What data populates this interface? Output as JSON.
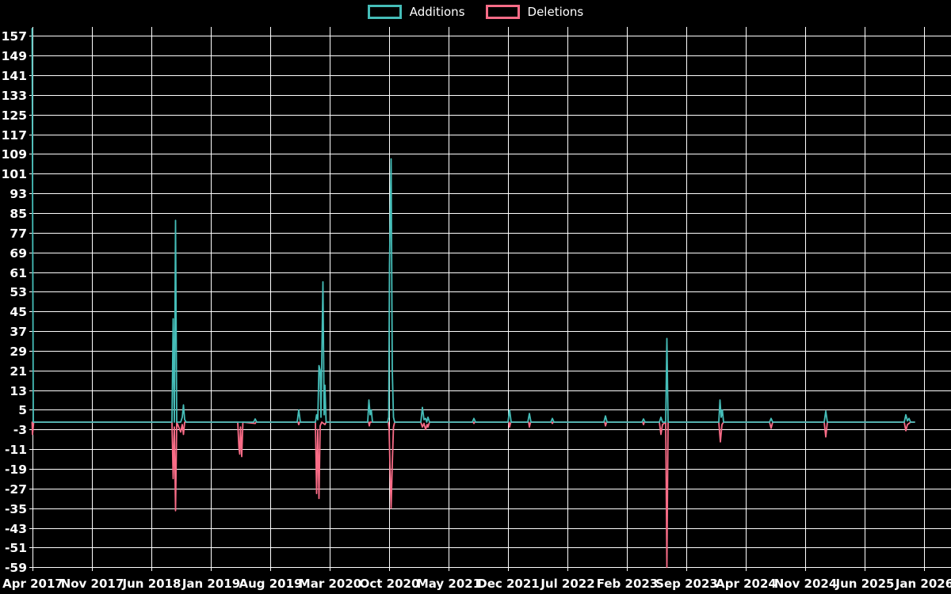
{
  "legend": {
    "items": [
      {
        "label": "Additions",
        "color": "#45bdb8"
      },
      {
        "label": "Deletions",
        "color": "#f96c87"
      }
    ]
  },
  "chart_data": {
    "type": "line",
    "title": "",
    "xlabel": "",
    "ylabel": "",
    "background_color": "#000000",
    "grid": true,
    "grid_color": "#ffffff",
    "text_color": "#ffffff",
    "legend_position": "top-center",
    "ylim": [
      -59,
      160
    ],
    "y_ticks": [
      157,
      149,
      141,
      133,
      125,
      117,
      109,
      101,
      93,
      85,
      77,
      69,
      61,
      53,
      45,
      37,
      29,
      21,
      13,
      5,
      -3,
      -11,
      -19,
      -27,
      -35,
      -43,
      -51,
      -59
    ],
    "x_ticks": [
      "Apr 2017",
      "Nov 2017",
      "Jun 2018",
      "Jan 2019",
      "Aug 2019",
      "Mar 2020",
      "Oct 2020",
      "May 2021",
      "Dec 2021",
      "Jul 2022",
      "Feb 2023",
      "Sep 2023",
      "Apr 2024",
      "Nov 2024",
      "Jun 2025",
      "Jan 2026"
    ],
    "series": [
      {
        "name": "Additions",
        "color": "#45bdb8",
        "points": [
          [
            40.5,
            160
          ],
          [
            42,
            0
          ],
          [
            217,
            0
          ],
          [
            218.5,
            42
          ],
          [
            220,
            0
          ],
          [
            221.5,
            82
          ],
          [
            223,
            0
          ],
          [
            228,
            0
          ],
          [
            230,
            2
          ],
          [
            231.5,
            7
          ],
          [
            233,
            1
          ],
          [
            235,
            0
          ],
          [
            300,
            0
          ],
          [
            306,
            0
          ],
          [
            320,
            0
          ],
          [
            322,
            1.3
          ],
          [
            324,
            0
          ],
          [
            375,
            0
          ],
          [
            377,
            5
          ],
          [
            379,
            0
          ],
          [
            398,
            0
          ],
          [
            399.5,
            3
          ],
          [
            401,
            1
          ],
          [
            402.5,
            23
          ],
          [
            404,
            21
          ],
          [
            405,
            2
          ],
          [
            407.5,
            57
          ],
          [
            409,
            3
          ],
          [
            410,
            15
          ],
          [
            411.5,
            0
          ],
          [
            464,
            0
          ],
          [
            465.5,
            9
          ],
          [
            467,
            3
          ],
          [
            468.5,
            5
          ],
          [
            470,
            0
          ],
          [
            489,
            0
          ],
          [
            490.5,
            2
          ],
          [
            491.5,
            64
          ],
          [
            493.5,
            107
          ],
          [
            495,
            21
          ],
          [
            496.5,
            2
          ],
          [
            498,
            0
          ],
          [
            531,
            0
          ],
          [
            533,
            6
          ],
          [
            535,
            1
          ],
          [
            537,
            1.5
          ],
          [
            538.5,
            0
          ],
          [
            540,
            2
          ],
          [
            542,
            0
          ],
          [
            596,
            0
          ],
          [
            598,
            1.5
          ],
          [
            600,
            0
          ],
          [
            641,
            0
          ],
          [
            643,
            5
          ],
          [
            645,
            0
          ],
          [
            666,
            0
          ],
          [
            668,
            3.5
          ],
          [
            670,
            0
          ],
          [
            695,
            0
          ],
          [
            697,
            1.5
          ],
          [
            699,
            0
          ],
          [
            762,
            0
          ],
          [
            764,
            2.5
          ],
          [
            766,
            0
          ],
          [
            810,
            0
          ],
          [
            812,
            1.3
          ],
          [
            814,
            0
          ],
          [
            832,
            0
          ],
          [
            834,
            2
          ],
          [
            836,
            0
          ],
          [
            840,
            0
          ],
          [
            841.5,
            34
          ],
          [
            843,
            0
          ],
          [
            907,
            0
          ],
          [
            908.5,
            9
          ],
          [
            910,
            2
          ],
          [
            911.5,
            5
          ],
          [
            913,
            0
          ],
          [
            971,
            0
          ],
          [
            973,
            1.5
          ],
          [
            975,
            0
          ],
          [
            1040,
            0
          ],
          [
            1042,
            4.5
          ],
          [
            1044,
            0
          ],
          [
            1141,
            0
          ],
          [
            1143,
            3
          ],
          [
            1145,
            0.5
          ],
          [
            1147,
            1.5
          ],
          [
            1149,
            0
          ],
          [
            1154,
            0
          ]
        ]
      },
      {
        "name": "Deletions",
        "color": "#f96c87",
        "points": [
          [
            40.5,
            0
          ],
          [
            41,
            -5
          ],
          [
            42.5,
            0
          ],
          [
            217,
            0
          ],
          [
            218.5,
            -23
          ],
          [
            220,
            -2
          ],
          [
            221.5,
            -36
          ],
          [
            223,
            0
          ],
          [
            228,
            -4
          ],
          [
            230,
            -1
          ],
          [
            231.5,
            -5
          ],
          [
            233,
            0
          ],
          [
            300,
            0
          ],
          [
            301.5,
            -10.5
          ],
          [
            302.5,
            -13
          ],
          [
            303.5,
            -2
          ],
          [
            305,
            -14
          ],
          [
            306.5,
            0
          ],
          [
            322,
            -0.5
          ],
          [
            323,
            0
          ],
          [
            376,
            0
          ],
          [
            377,
            -1
          ],
          [
            378,
            0
          ],
          [
            398,
            0
          ],
          [
            399.5,
            -29
          ],
          [
            401,
            -3
          ],
          [
            402.5,
            -31
          ],
          [
            404,
            -1.5
          ],
          [
            406,
            0
          ],
          [
            410,
            -1
          ],
          [
            411.5,
            0
          ],
          [
            465,
            0
          ],
          [
            466,
            -1.5
          ],
          [
            467,
            0
          ],
          [
            490,
            0
          ],
          [
            491,
            -3
          ],
          [
            492,
            -17
          ],
          [
            493.5,
            -35
          ],
          [
            495,
            -17
          ],
          [
            496.5,
            -2
          ],
          [
            498,
            0
          ],
          [
            531,
            0
          ],
          [
            533,
            -2
          ],
          [
            535,
            -0.5
          ],
          [
            537,
            -3
          ],
          [
            539,
            -1
          ],
          [
            540,
            -2
          ],
          [
            542,
            0
          ],
          [
            597,
            0
          ],
          [
            598,
            -0.5
          ],
          [
            599,
            0
          ],
          [
            642,
            0
          ],
          [
            643,
            -2
          ],
          [
            644.5,
            0
          ],
          [
            667,
            0
          ],
          [
            668,
            -2
          ],
          [
            669.5,
            0
          ],
          [
            696,
            0
          ],
          [
            697,
            -0.5
          ],
          [
            698,
            0
          ],
          [
            763,
            0
          ],
          [
            764,
            -1.5
          ],
          [
            765.5,
            0
          ],
          [
            811,
            0
          ],
          [
            812,
            -1
          ],
          [
            813,
            0
          ],
          [
            832,
            0
          ],
          [
            834,
            -5
          ],
          [
            836,
            -1
          ],
          [
            840,
            0
          ],
          [
            841.5,
            -59
          ],
          [
            843,
            0
          ],
          [
            907,
            0
          ],
          [
            909,
            -8
          ],
          [
            911,
            -1
          ],
          [
            913,
            0
          ],
          [
            971,
            0
          ],
          [
            973,
            -2.5
          ],
          [
            975,
            0
          ],
          [
            1040,
            0
          ],
          [
            1042,
            -6
          ],
          [
            1044,
            0
          ],
          [
            1141,
            0
          ],
          [
            1143,
            -3.5
          ],
          [
            1145,
            -1
          ],
          [
            1147,
            -0.5
          ],
          [
            1149,
            0
          ],
          [
            1154,
            0
          ]
        ]
      }
    ]
  }
}
